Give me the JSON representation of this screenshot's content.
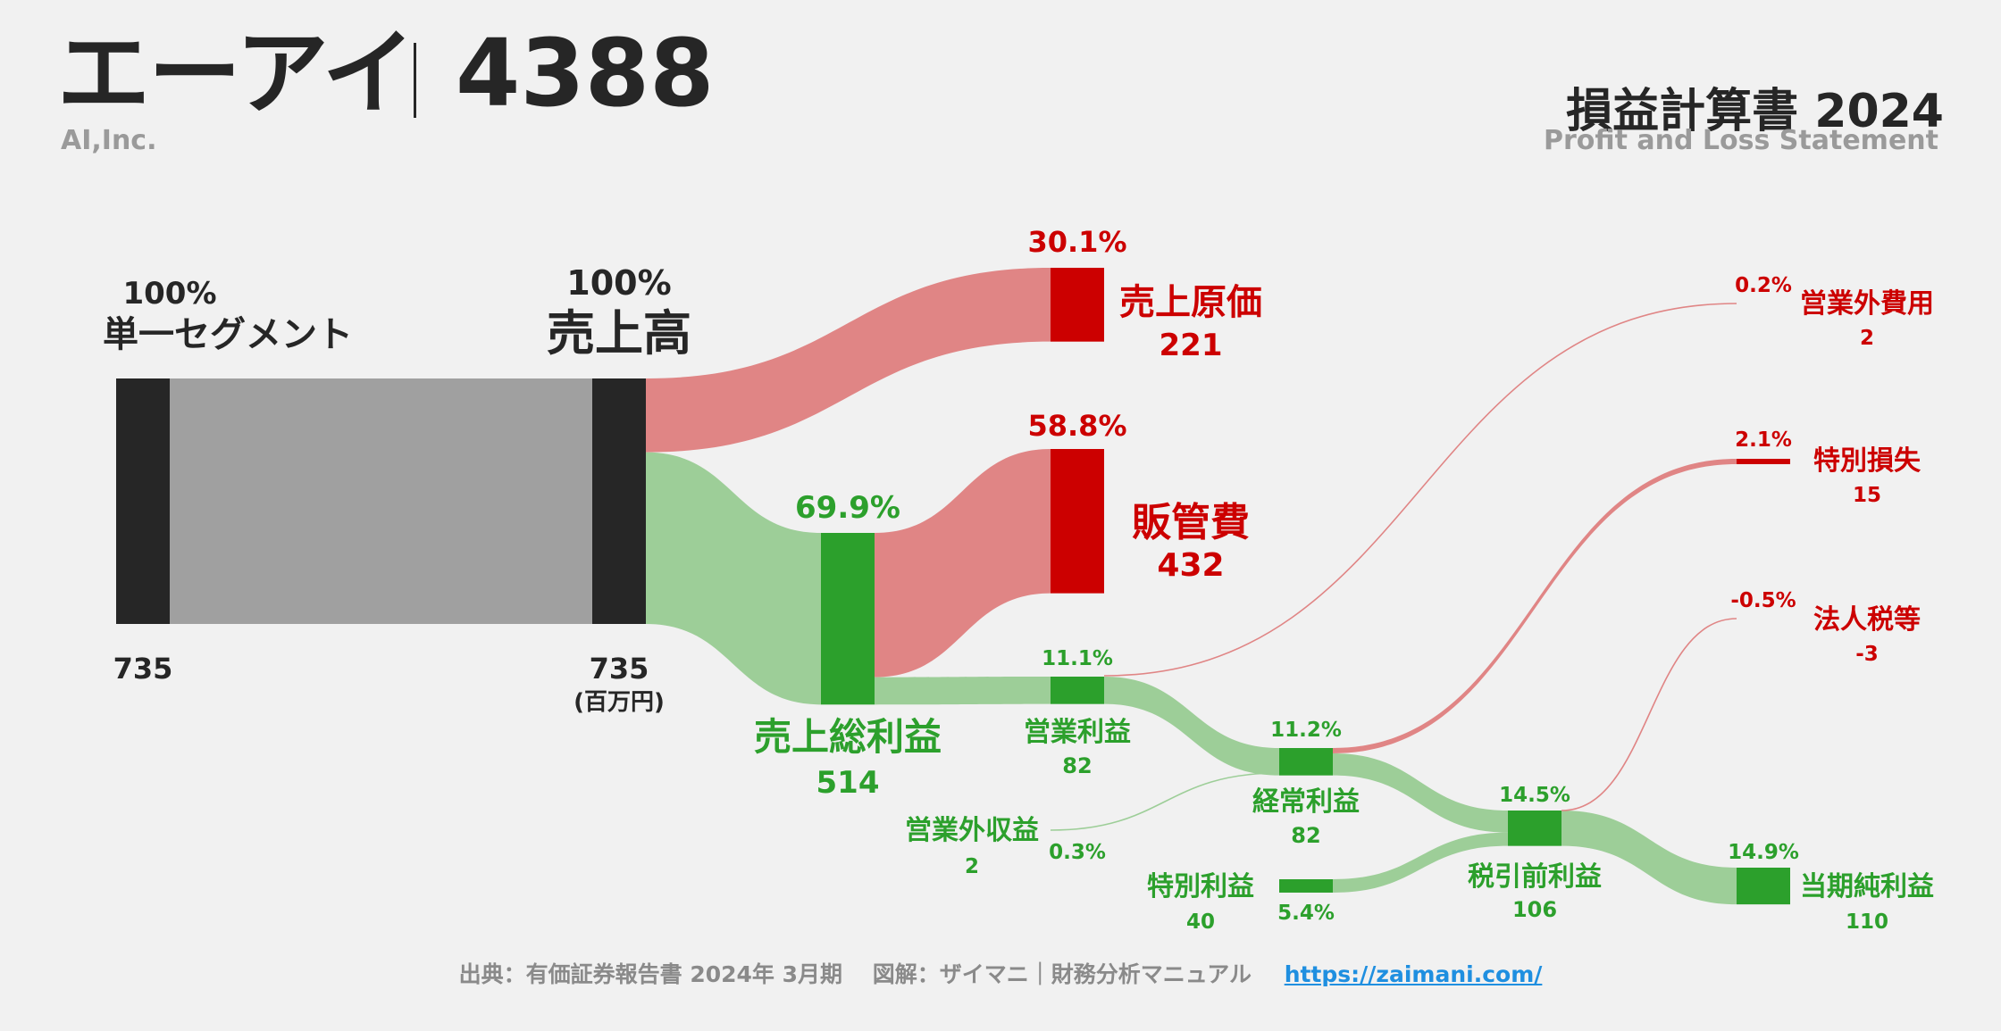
{
  "header": {
    "company_name": "エーアイ",
    "ticker": "4388",
    "company_name_en": "AI,Inc.",
    "statement_title": "損益計算書 2024",
    "statement_subtitle": "Profit and Loss Statement"
  },
  "footer": {
    "source": "出典：有価証券報告書 2024年 3月期　 図解：ザイマニ｜財務分析マニュアル",
    "url": "https://zaimani.com/"
  },
  "colors": {
    "dark": "#262626",
    "gray": "#a0a0a0",
    "red": "#cc0000",
    "red_flow": "#e08585",
    "green": "#2ca02c",
    "green_flow": "#9dce98"
  },
  "chart_data": {
    "type": "sankey",
    "title": "損益計算書 2024",
    "unit": "(百万円)",
    "nodes": [
      {
        "id": "segment",
        "label": "単一セグメント",
        "value": 735,
        "pct": "100%"
      },
      {
        "id": "revenue",
        "label": "売上高",
        "value": 735,
        "pct": "100%"
      },
      {
        "id": "cogs",
        "label": "売上原価",
        "value": 221,
        "pct": "30.1%"
      },
      {
        "id": "gross_profit",
        "label": "売上総利益",
        "value": 514,
        "pct": "69.9%"
      },
      {
        "id": "sga",
        "label": "販管費",
        "value": 432,
        "pct": "58.8%"
      },
      {
        "id": "operating_income",
        "label": "営業利益",
        "value": 82,
        "pct": "11.1%"
      },
      {
        "id": "non_op_income",
        "label": "営業外収益",
        "value": 2,
        "pct": "0.3%"
      },
      {
        "id": "non_op_expense",
        "label": "営業外費用",
        "value": 2,
        "pct": "0.2%"
      },
      {
        "id": "ordinary_income",
        "label": "経常利益",
        "value": 82,
        "pct": "11.2%"
      },
      {
        "id": "extraordinary_gain",
        "label": "特別利益",
        "value": 40,
        "pct": "5.4%"
      },
      {
        "id": "extraordinary_loss",
        "label": "特別損失",
        "value": 15,
        "pct": "2.1%"
      },
      {
        "id": "pretax_income",
        "label": "税引前利益",
        "value": 106,
        "pct": "14.5%"
      },
      {
        "id": "income_tax",
        "label": "法人税等",
        "value": -3,
        "pct": "-0.5%"
      },
      {
        "id": "net_income",
        "label": "当期純利益",
        "value": 110,
        "pct": "14.9%"
      }
    ],
    "links": [
      {
        "source": "segment",
        "target": "revenue",
        "value": 735
      },
      {
        "source": "revenue",
        "target": "cogs",
        "value": 221
      },
      {
        "source": "revenue",
        "target": "gross_profit",
        "value": 514
      },
      {
        "source": "gross_profit",
        "target": "sga",
        "value": 432
      },
      {
        "source": "gross_profit",
        "target": "operating_income",
        "value": 82
      },
      {
        "source": "operating_income",
        "target": "non_op_expense",
        "value": 2
      },
      {
        "source": "operating_income",
        "target": "ordinary_income",
        "value": 82
      },
      {
        "source": "non_op_income",
        "target": "ordinary_income",
        "value": 2
      },
      {
        "source": "ordinary_income",
        "target": "extraordinary_loss",
        "value": 15
      },
      {
        "source": "ordinary_income",
        "target": "pretax_income",
        "value": 82
      },
      {
        "source": "extraordinary_gain",
        "target": "pretax_income",
        "value": 40
      },
      {
        "source": "pretax_income",
        "target": "income_tax",
        "value": -3
      },
      {
        "source": "pretax_income",
        "target": "net_income",
        "value": 106
      }
    ]
  }
}
